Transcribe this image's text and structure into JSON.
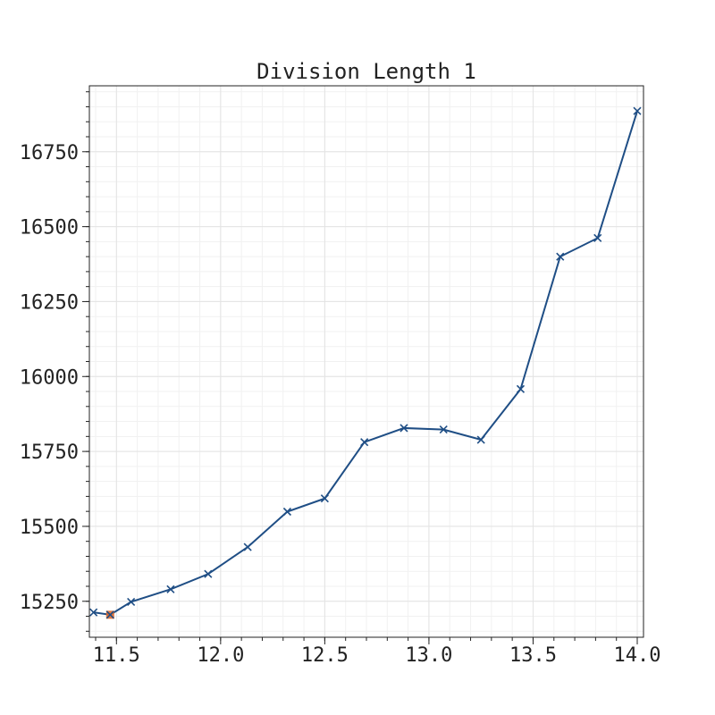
{
  "chart_data": {
    "type": "line",
    "title": "Division Length 1",
    "xlabel": "",
    "ylabel": "",
    "xlim": [
      11.37,
      14.03
    ],
    "ylim": [
      15130,
      16970
    ],
    "xticks": [
      11.5,
      12.0,
      12.5,
      13.0,
      13.5,
      14.0
    ],
    "xtick_labels": [
      "11.5",
      "12.0",
      "12.5",
      "13.0",
      "13.5",
      "14.0"
    ],
    "yticks": [
      15250,
      15500,
      15750,
      16000,
      16250,
      16500,
      16750
    ],
    "ytick_labels": [
      "15250",
      "15500",
      "15750",
      "16000",
      "16250",
      "16500",
      "16750"
    ],
    "grid": true,
    "series": [
      {
        "color": "#1f4e85",
        "marker": "x",
        "x": [
          11.39,
          11.47,
          11.57,
          11.76,
          11.94,
          12.13,
          12.32,
          12.5,
          12.69,
          12.88,
          13.07,
          13.25,
          13.44,
          13.63,
          13.81,
          14.0
        ],
        "y": [
          15213,
          15205,
          15248,
          15290,
          15341,
          15431,
          15549,
          15593,
          15781,
          15828,
          15823,
          15789,
          15958,
          16400,
          16462,
          16886
        ]
      }
    ],
    "highlight_point": {
      "x": 11.47,
      "y": 15205,
      "color": "#e06a2c"
    }
  }
}
